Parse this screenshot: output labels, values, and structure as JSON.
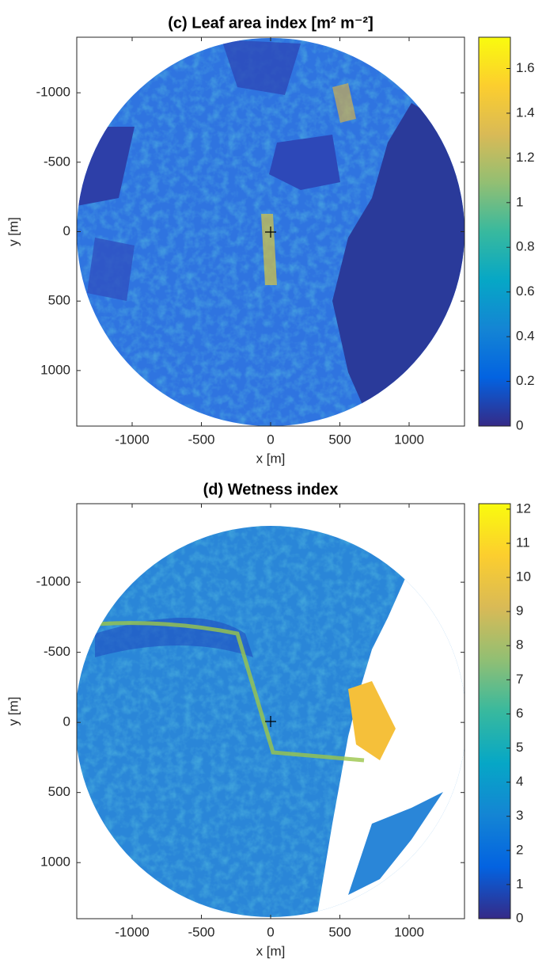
{
  "chart_data": [
    {
      "type": "image",
      "title": "(c) Leaf area index [m² m⁻²]",
      "xlabel": "x [m]",
      "ylabel": "y [m]",
      "xlim": [
        -1400,
        1400
      ],
      "ylim": [
        -1400,
        1400
      ],
      "y_reversed": true,
      "xticks": [
        -1000,
        -500,
        0,
        500,
        1000
      ],
      "yticks": [
        -1000,
        -500,
        0,
        500,
        1000
      ],
      "colormap": "parula",
      "clim": [
        0,
        1.74
      ],
      "cticks": [
        0,
        0.2,
        0.4,
        0.6,
        0.8,
        1,
        1.2,
        1.4,
        1.6
      ]
    },
    {
      "type": "image",
      "title": "(d) Wetness index",
      "xlabel": "x [m]",
      "ylabel": "y [m]",
      "xlim": [
        -1400,
        1400
      ],
      "ylim": [
        -1560,
        1400
      ],
      "y_reversed": true,
      "xticks": [
        -1000,
        -500,
        0,
        500,
        1000
      ],
      "yticks": [
        -1000,
        -500,
        0,
        500,
        1000
      ],
      "colormap": "parula",
      "clim": [
        0,
        12.16
      ],
      "cticks": [
        0,
        1,
        2,
        3,
        4,
        5,
        6,
        7,
        8,
        9,
        10,
        11,
        12
      ]
    }
  ]
}
